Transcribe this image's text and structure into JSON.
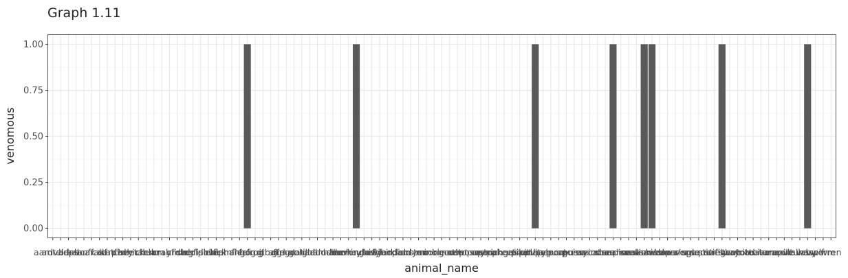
{
  "chart_data": {
    "type": "bar",
    "title": "Graph 1.11",
    "xlabel": "animal_name",
    "ylabel": "venomous",
    "ylim": [
      -0.05,
      1.05
    ],
    "yticks": [
      "0.00",
      "0.25",
      "0.50",
      "0.75",
      "1.00"
    ],
    "grid": true,
    "legend": "none",
    "bar_color": "#595959",
    "categories": [
      "aardvark",
      "antelope",
      "bass",
      "bear",
      "boar",
      "buffalo",
      "calf",
      "carp",
      "catfish",
      "cavy",
      "cheetah",
      "chicken",
      "chub",
      "clam",
      "crab",
      "crayfish",
      "crow",
      "deer",
      "dogfish",
      "dolphin",
      "dove",
      "duck",
      "elephant",
      "flamingo",
      "flea",
      "frog",
      "frog",
      "fruitbat",
      "giraffe",
      "girl",
      "gnat",
      "goat",
      "gorilla",
      "gull",
      "haddock",
      "hamster",
      "hare",
      "hawk",
      "herring",
      "honeybee",
      "housefly",
      "kiwi",
      "ladybird",
      "lark",
      "leopard",
      "lion",
      "lobster",
      "lynx",
      "mink",
      "mole",
      "mongoose",
      "moth",
      "newt",
      "octopus",
      "opossum",
      "oryx",
      "ostrich",
      "parakeet",
      "penguin",
      "pheasant",
      "pike",
      "piranha",
      "pitviper",
      "platypus",
      "polecat",
      "pony",
      "porpoise",
      "puma",
      "pussycat",
      "raccoon",
      "reindeer",
      "rhea",
      "scorpion",
      "seahorse",
      "seal",
      "sealion",
      "seasnake",
      "seawasp",
      "skimmer",
      "skua",
      "slowworm",
      "slug",
      "sole",
      "sparrow",
      "squirrel",
      "starfish",
      "stingray",
      "swan",
      "termite",
      "toad",
      "tortoise",
      "tuatara",
      "tuna",
      "vampire",
      "vole",
      "vulture",
      "wallaby",
      "wasp",
      "wolf",
      "worm",
      "wren"
    ],
    "values": [
      0,
      0,
      0,
      0,
      0,
      0,
      0,
      0,
      0,
      0,
      0,
      0,
      0,
      0,
      0,
      0,
      0,
      0,
      0,
      0,
      0,
      0,
      0,
      0,
      0,
      1,
      0,
      0,
      0,
      0,
      0,
      0,
      0,
      0,
      0,
      0,
      0,
      0,
      0,
      1,
      0,
      0,
      0,
      0,
      0,
      0,
      0,
      0,
      0,
      0,
      0,
      0,
      0,
      0,
      0,
      0,
      0,
      0,
      0,
      0,
      0,
      0,
      1,
      0,
      0,
      0,
      0,
      0,
      0,
      0,
      0,
      0,
      1,
      0,
      0,
      0,
      1,
      1,
      0,
      0,
      0,
      0,
      0,
      0,
      0,
      0,
      1,
      0,
      0,
      0,
      0,
      0,
      0,
      0,
      0,
      0,
      0,
      1,
      0,
      0,
      0
    ]
  }
}
